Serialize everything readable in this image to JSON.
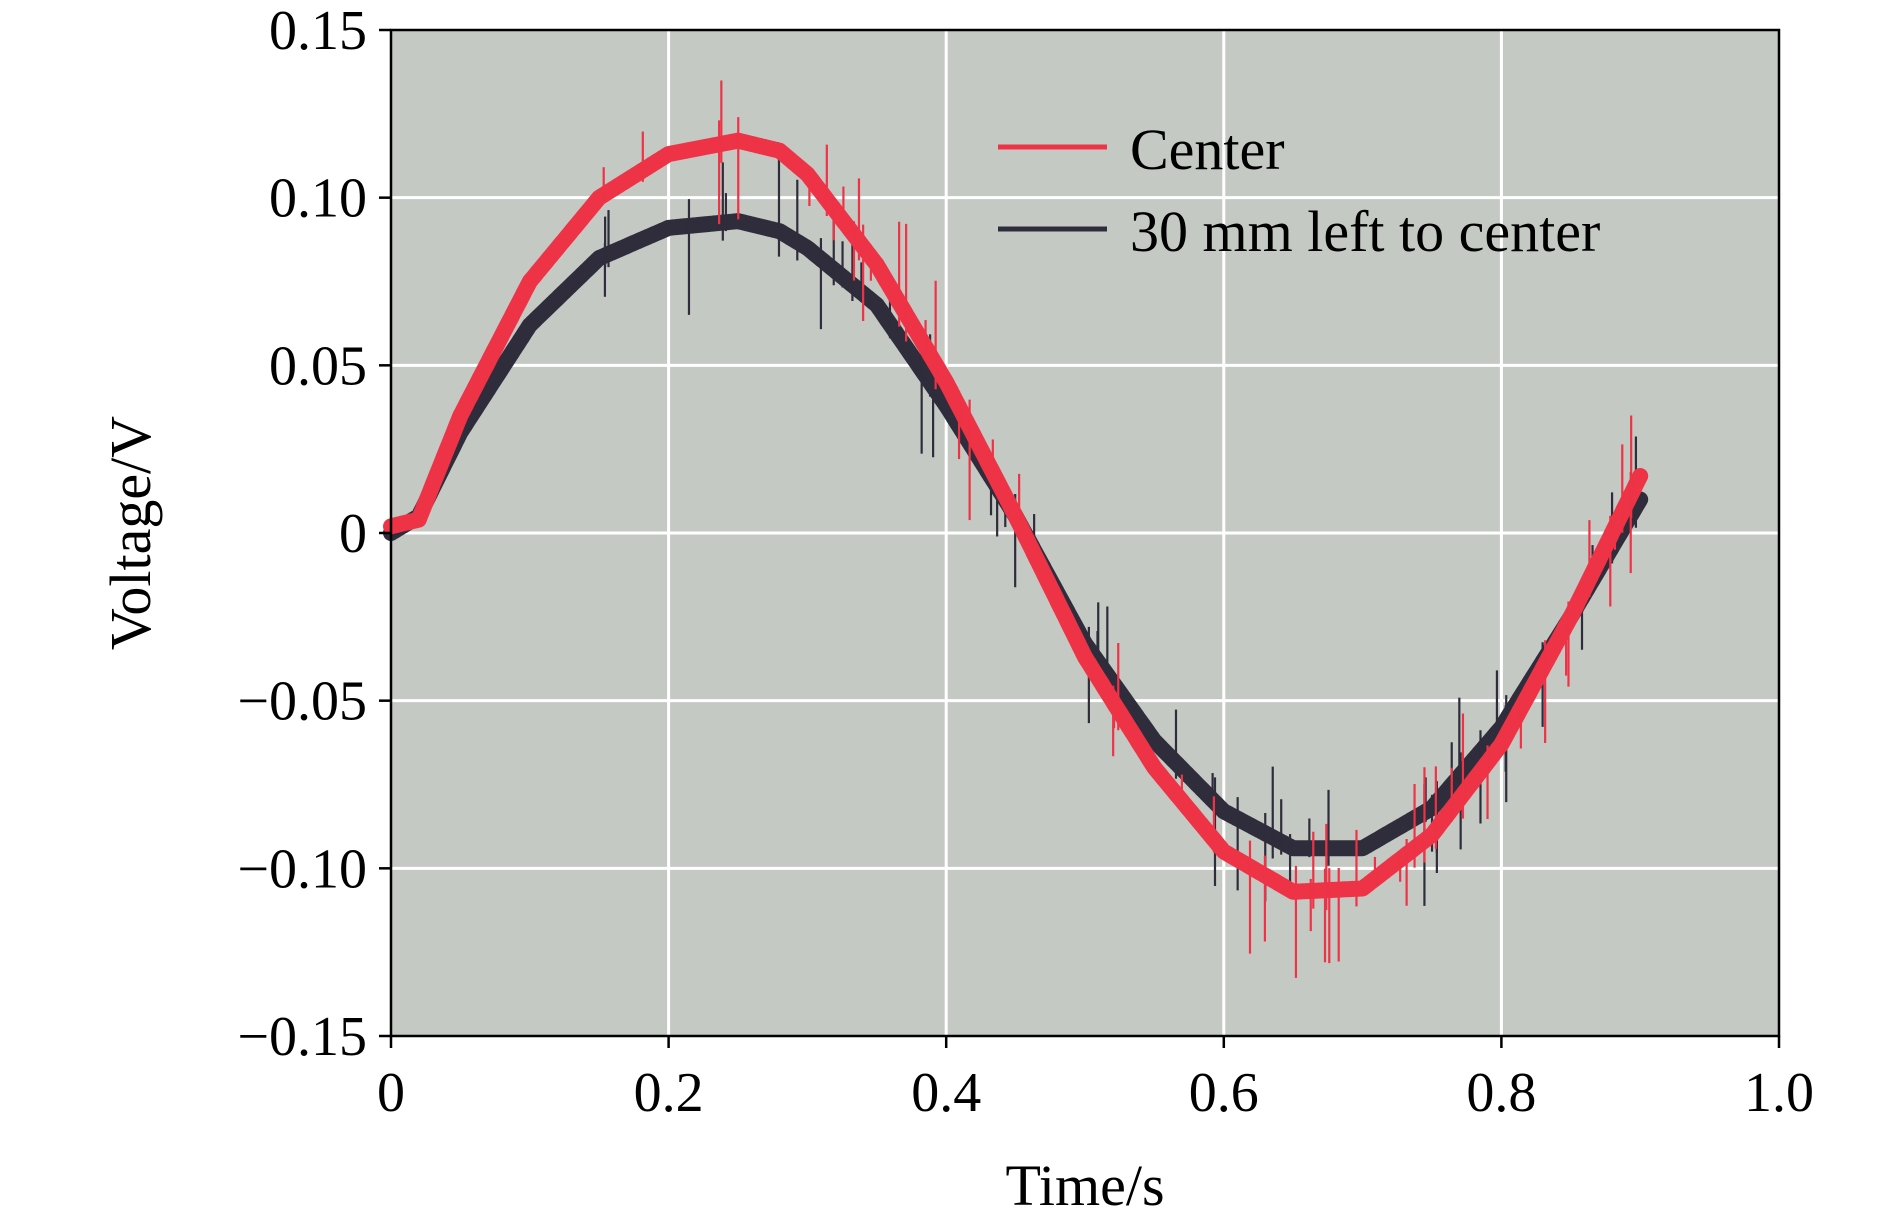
{
  "chart_data": {
    "type": "line",
    "title": "",
    "xlabel": "Time/s",
    "ylabel": "Voltage/V",
    "xlim": [
      0,
      1.0
    ],
    "ylim": [
      -0.15,
      0.15
    ],
    "xticks": [
      0,
      0.2,
      0.4,
      0.6,
      0.8,
      1.0
    ],
    "xtick_labels": [
      "0",
      "0.2",
      "0.4",
      "0.6",
      "0.8",
      "1.0"
    ],
    "yticks": [
      0.15,
      0.1,
      0.05,
      0,
      -0.05,
      -0.1,
      -0.15
    ],
    "ytick_labels": [
      "0.15",
      "0.10",
      "0.05",
      "0",
      "−0.05",
      "−0.10",
      "−0.15"
    ],
    "grid": true,
    "legend_position": "top-right",
    "plot_background": "#c4c9c4",
    "series": [
      {
        "name": "Center",
        "color": "#ee3346",
        "x": [
          0,
          0.02,
          0.05,
          0.1,
          0.15,
          0.2,
          0.25,
          0.28,
          0.3,
          0.35,
          0.4,
          0.45,
          0.5,
          0.55,
          0.6,
          0.65,
          0.7,
          0.75,
          0.8,
          0.85,
          0.9
        ],
        "y": [
          0.002,
          0.004,
          0.035,
          0.075,
          0.1,
          0.113,
          0.117,
          0.114,
          0.107,
          0.08,
          0.045,
          0.005,
          -0.037,
          -0.07,
          -0.095,
          -0.107,
          -0.106,
          -0.09,
          -0.063,
          -0.025,
          0.017
        ]
      },
      {
        "name": "30 mm left to center",
        "color": "#2f2d3b",
        "x": [
          0,
          0.02,
          0.05,
          0.1,
          0.15,
          0.2,
          0.25,
          0.28,
          0.3,
          0.35,
          0.4,
          0.45,
          0.5,
          0.55,
          0.6,
          0.65,
          0.7,
          0.75,
          0.8,
          0.85,
          0.9
        ],
        "y": [
          0.0,
          0.005,
          0.03,
          0.062,
          0.082,
          0.091,
          0.093,
          0.09,
          0.085,
          0.068,
          0.038,
          0.005,
          -0.033,
          -0.062,
          -0.083,
          -0.094,
          -0.094,
          -0.082,
          -0.058,
          -0.025,
          0.01
        ]
      }
    ]
  }
}
